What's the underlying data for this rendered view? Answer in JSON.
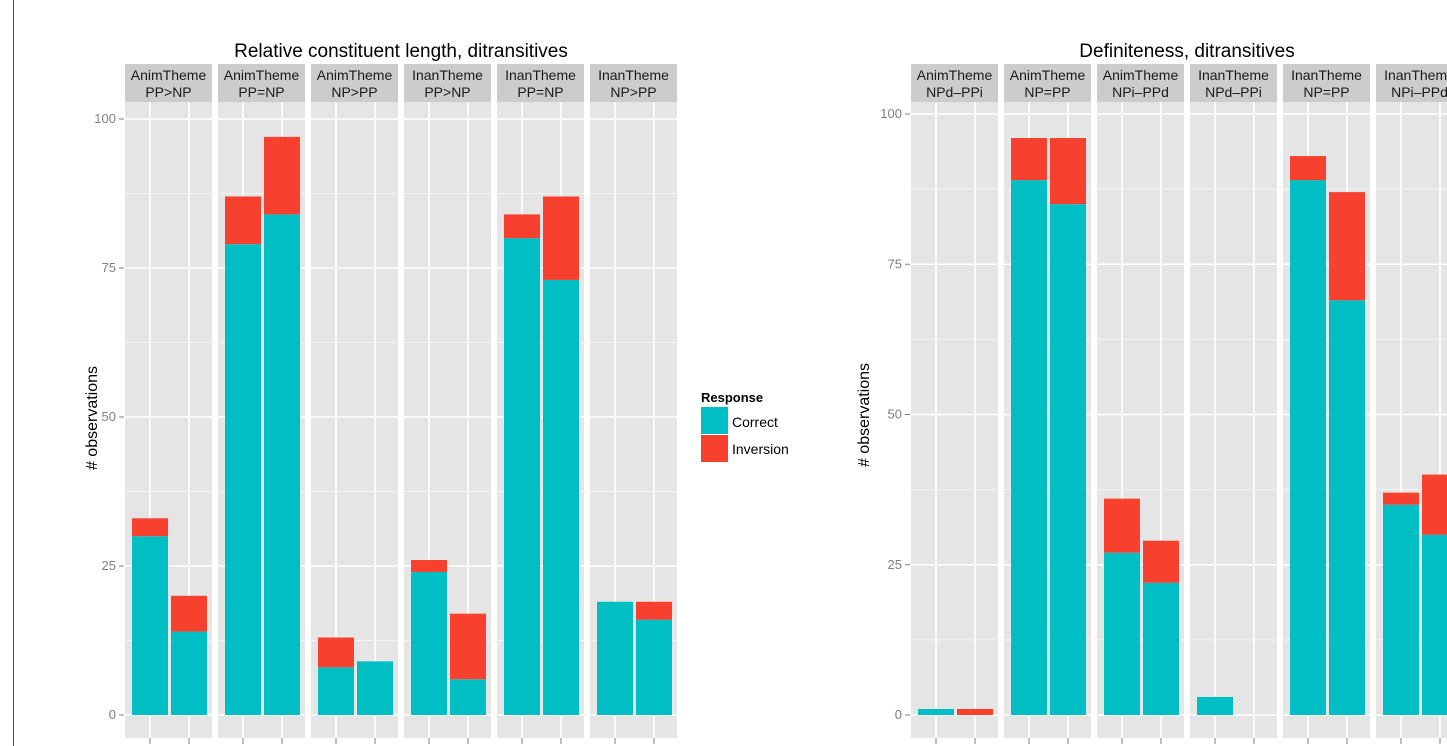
{
  "chart_data": [
    {
      "type": "bar",
      "stacked": true,
      "title": "Relative constituent length, ditransitives",
      "ylabel": "# observations",
      "xlabel": "",
      "ylim": [
        0,
        105
      ],
      "yticks": [
        0,
        25,
        50,
        75,
        100
      ],
      "grid": true,
      "facets": [
        {
          "line1": "AnimTheme",
          "line2": "PP>NP",
          "bars": [
            {
              "Correct": 30,
              "Inversion": 3
            },
            {
              "Correct": 14,
              "Inversion": 6
            }
          ]
        },
        {
          "line1": "AnimTheme",
          "line2": "PP=NP",
          "bars": [
            {
              "Correct": 79,
              "Inversion": 8
            },
            {
              "Correct": 84,
              "Inversion": 13
            }
          ]
        },
        {
          "line1": "AnimTheme",
          "line2": "NP>PP",
          "bars": [
            {
              "Correct": 8,
              "Inversion": 5
            },
            {
              "Correct": 9,
              "Inversion": 0
            }
          ]
        },
        {
          "line1": "InanTheme",
          "line2": "PP>NP",
          "bars": [
            {
              "Correct": 24,
              "Inversion": 2
            },
            {
              "Correct": 6,
              "Inversion": 11
            }
          ]
        },
        {
          "line1": "InanTheme",
          "line2": "PP=NP",
          "bars": [
            {
              "Correct": 80,
              "Inversion": 4
            },
            {
              "Correct": 73,
              "Inversion": 14
            }
          ]
        },
        {
          "line1": "InanTheme",
          "line2": "NP>PP",
          "bars": [
            {
              "Correct": 19,
              "Inversion": 0
            },
            {
              "Correct": 16,
              "Inversion": 3
            }
          ]
        }
      ]
    },
    {
      "type": "bar",
      "stacked": true,
      "title": "Definiteness, ditransitives",
      "ylabel": "# observations",
      "xlabel": "",
      "ylim": [
        0,
        105
      ],
      "yticks": [
        0,
        25,
        50,
        75,
        100
      ],
      "grid": true,
      "facets": [
        {
          "line1": "AnimTheme",
          "line2": "NPd–PPi",
          "bars": [
            {
              "Correct": 1,
              "Inversion": 0
            },
            {
              "Correct": 0,
              "Inversion": 1
            }
          ]
        },
        {
          "line1": "AnimTheme",
          "line2": "NP=PP",
          "bars": [
            {
              "Correct": 89,
              "Inversion": 7
            },
            {
              "Correct": 85,
              "Inversion": 11
            }
          ]
        },
        {
          "line1": "AnimTheme",
          "line2": "NPi–PPd",
          "bars": [
            {
              "Correct": 27,
              "Inversion": 9
            },
            {
              "Correct": 22,
              "Inversion": 7
            }
          ]
        },
        {
          "line1": "InanTheme",
          "line2": "NPd–PPi",
          "bars": [
            {
              "Correct": 3,
              "Inversion": 0
            },
            {
              "Correct": 0,
              "Inversion": 0
            }
          ]
        },
        {
          "line1": "InanTheme",
          "line2": "NP=PP",
          "bars": [
            {
              "Correct": 89,
              "Inversion": 4
            },
            {
              "Correct": 69,
              "Inversion": 18
            }
          ]
        },
        {
          "line1": "InanTheme",
          "line2": "NPi–PPd",
          "bars": [
            {
              "Correct": 35,
              "Inversion": 2
            },
            {
              "Correct": 30,
              "Inversion": 10
            }
          ]
        }
      ]
    }
  ],
  "legend": {
    "title": "Response",
    "items": [
      {
        "label": "Correct",
        "color": "#00BFC4"
      },
      {
        "label": "Inversion",
        "color": "#F8402F"
      }
    ]
  },
  "colors": {
    "correct": "#00BFC4",
    "inversion": "#F8402F",
    "panel_background": "#E5E5E5",
    "strip_background": "#CCCCCC",
    "grid": "#F4F4F4"
  }
}
